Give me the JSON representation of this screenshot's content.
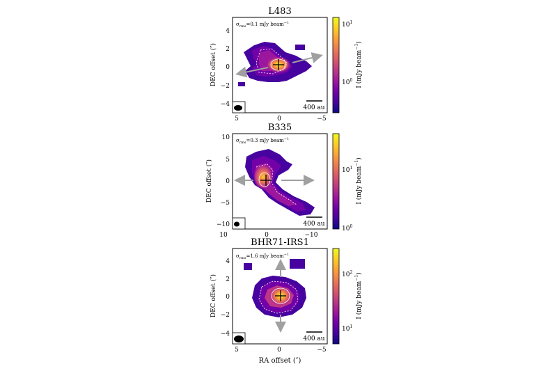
{
  "panels": [
    {
      "title": "L483",
      "rms_label": "σ",
      "rms_sub": "rms",
      "rms_value": "=0.1 mJy beam",
      "rms_exp": "−1",
      "scale_bar": "400 au",
      "yticks": [
        "4",
        "2",
        "0",
        "−2",
        "−4"
      ],
      "xticks": [
        "5",
        "0",
        "−5"
      ],
      "cbar_ticks": [
        {
          "main": "10",
          "exp": "1"
        },
        {
          "main": "10",
          "exp": "0"
        }
      ],
      "cbar_label": "I (mJy beam",
      "cbar_exp": "−1",
      "ylabel": "DEC offset (″)"
    },
    {
      "title": "B335",
      "rms_label": "σ",
      "rms_sub": "rms",
      "rms_value": "=0.3 mJy beam",
      "rms_exp": "−1",
      "scale_bar": "400 au",
      "yticks": [
        "10",
        "5",
        "0",
        "−5",
        "−10"
      ],
      "xticks": [
        "10",
        "0",
        "−10"
      ],
      "cbar_ticks": [
        {
          "main": "10",
          "exp": "1"
        },
        {
          "main": "10",
          "exp": "0"
        }
      ],
      "cbar_label": "I (mJy beam",
      "cbar_exp": "−1",
      "ylabel": "DEC offset (″)"
    },
    {
      "title": "BHR71-IRS1",
      "rms_label": "σ",
      "rms_sub": "rms",
      "rms_value": "=1.6 mJy beam",
      "rms_exp": "−1",
      "scale_bar": "400 au",
      "yticks": [
        "4",
        "2",
        "0",
        "−2",
        "−4"
      ],
      "xticks": [
        "5",
        "0",
        "−5"
      ],
      "cbar_ticks": [
        {
          "main": "10",
          "exp": "2"
        },
        {
          "main": "10",
          "exp": "1"
        }
      ],
      "cbar_label": "I (mJy beam",
      "cbar_exp": "−1",
      "ylabel": "DEC offset (″)"
    }
  ],
  "xlabel": "RA offset (″)",
  "colors": {
    "cmap": [
      "#0d0887",
      "#46039f",
      "#7201a8",
      "#9c179e",
      "#bd3786",
      "#d8576b",
      "#ed7953",
      "#fb9f3a",
      "#fdca26",
      "#f0f921"
    ],
    "arrow": "#a0a0a0",
    "contour": "#ffffff"
  }
}
